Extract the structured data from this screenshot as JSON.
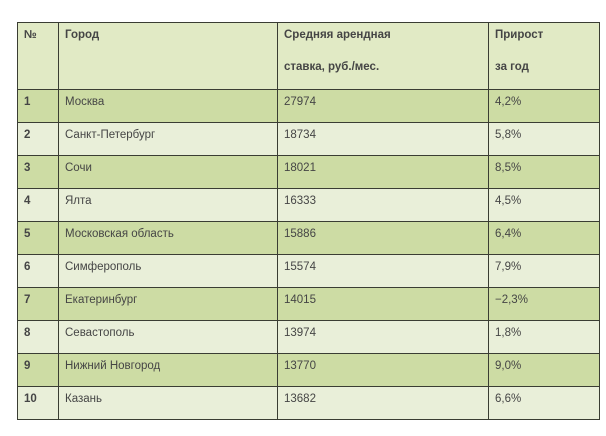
{
  "chart_data": {
    "type": "table",
    "title": "",
    "columns": [
      "№",
      "Город",
      "Средняя арендная ставка, руб./мес.",
      "Прирост за год"
    ],
    "rows": [
      [
        "1",
        "Москва",
        "27974",
        "4,2%"
      ],
      [
        "2",
        "Санкт-Петербург",
        "18734",
        "5,8%"
      ],
      [
        "3",
        "Сочи",
        "18021",
        "8,5%"
      ],
      [
        "4",
        "Ялта",
        "16333",
        "4,5%"
      ],
      [
        "5",
        "Московская область",
        "15886",
        "6,4%"
      ],
      [
        "6",
        "Симферополь",
        "15574",
        "7,9%"
      ],
      [
        "7",
        "Екатеринбург",
        "14015",
        "−2,3%"
      ],
      [
        "8",
        "Севастополь",
        "13974",
        "1,8%"
      ],
      [
        "9",
        "Нижний Новгород",
        "13770",
        "9,0%"
      ],
      [
        "10",
        "Казань",
        "13682",
        "6,6%"
      ]
    ]
  },
  "header": {
    "num": "№",
    "city": "Город",
    "rate_line1": "Средняя арендная",
    "rate_line2": "ставка, руб./мес.",
    "growth_line1": "Прирост",
    "growth_line2": "за год"
  },
  "colors": {
    "header_bg": "#e1eac5",
    "odd_bg": "#cddca4",
    "even_bg": "#e9efd9",
    "border": "#3a3d33",
    "text": "#454545"
  }
}
